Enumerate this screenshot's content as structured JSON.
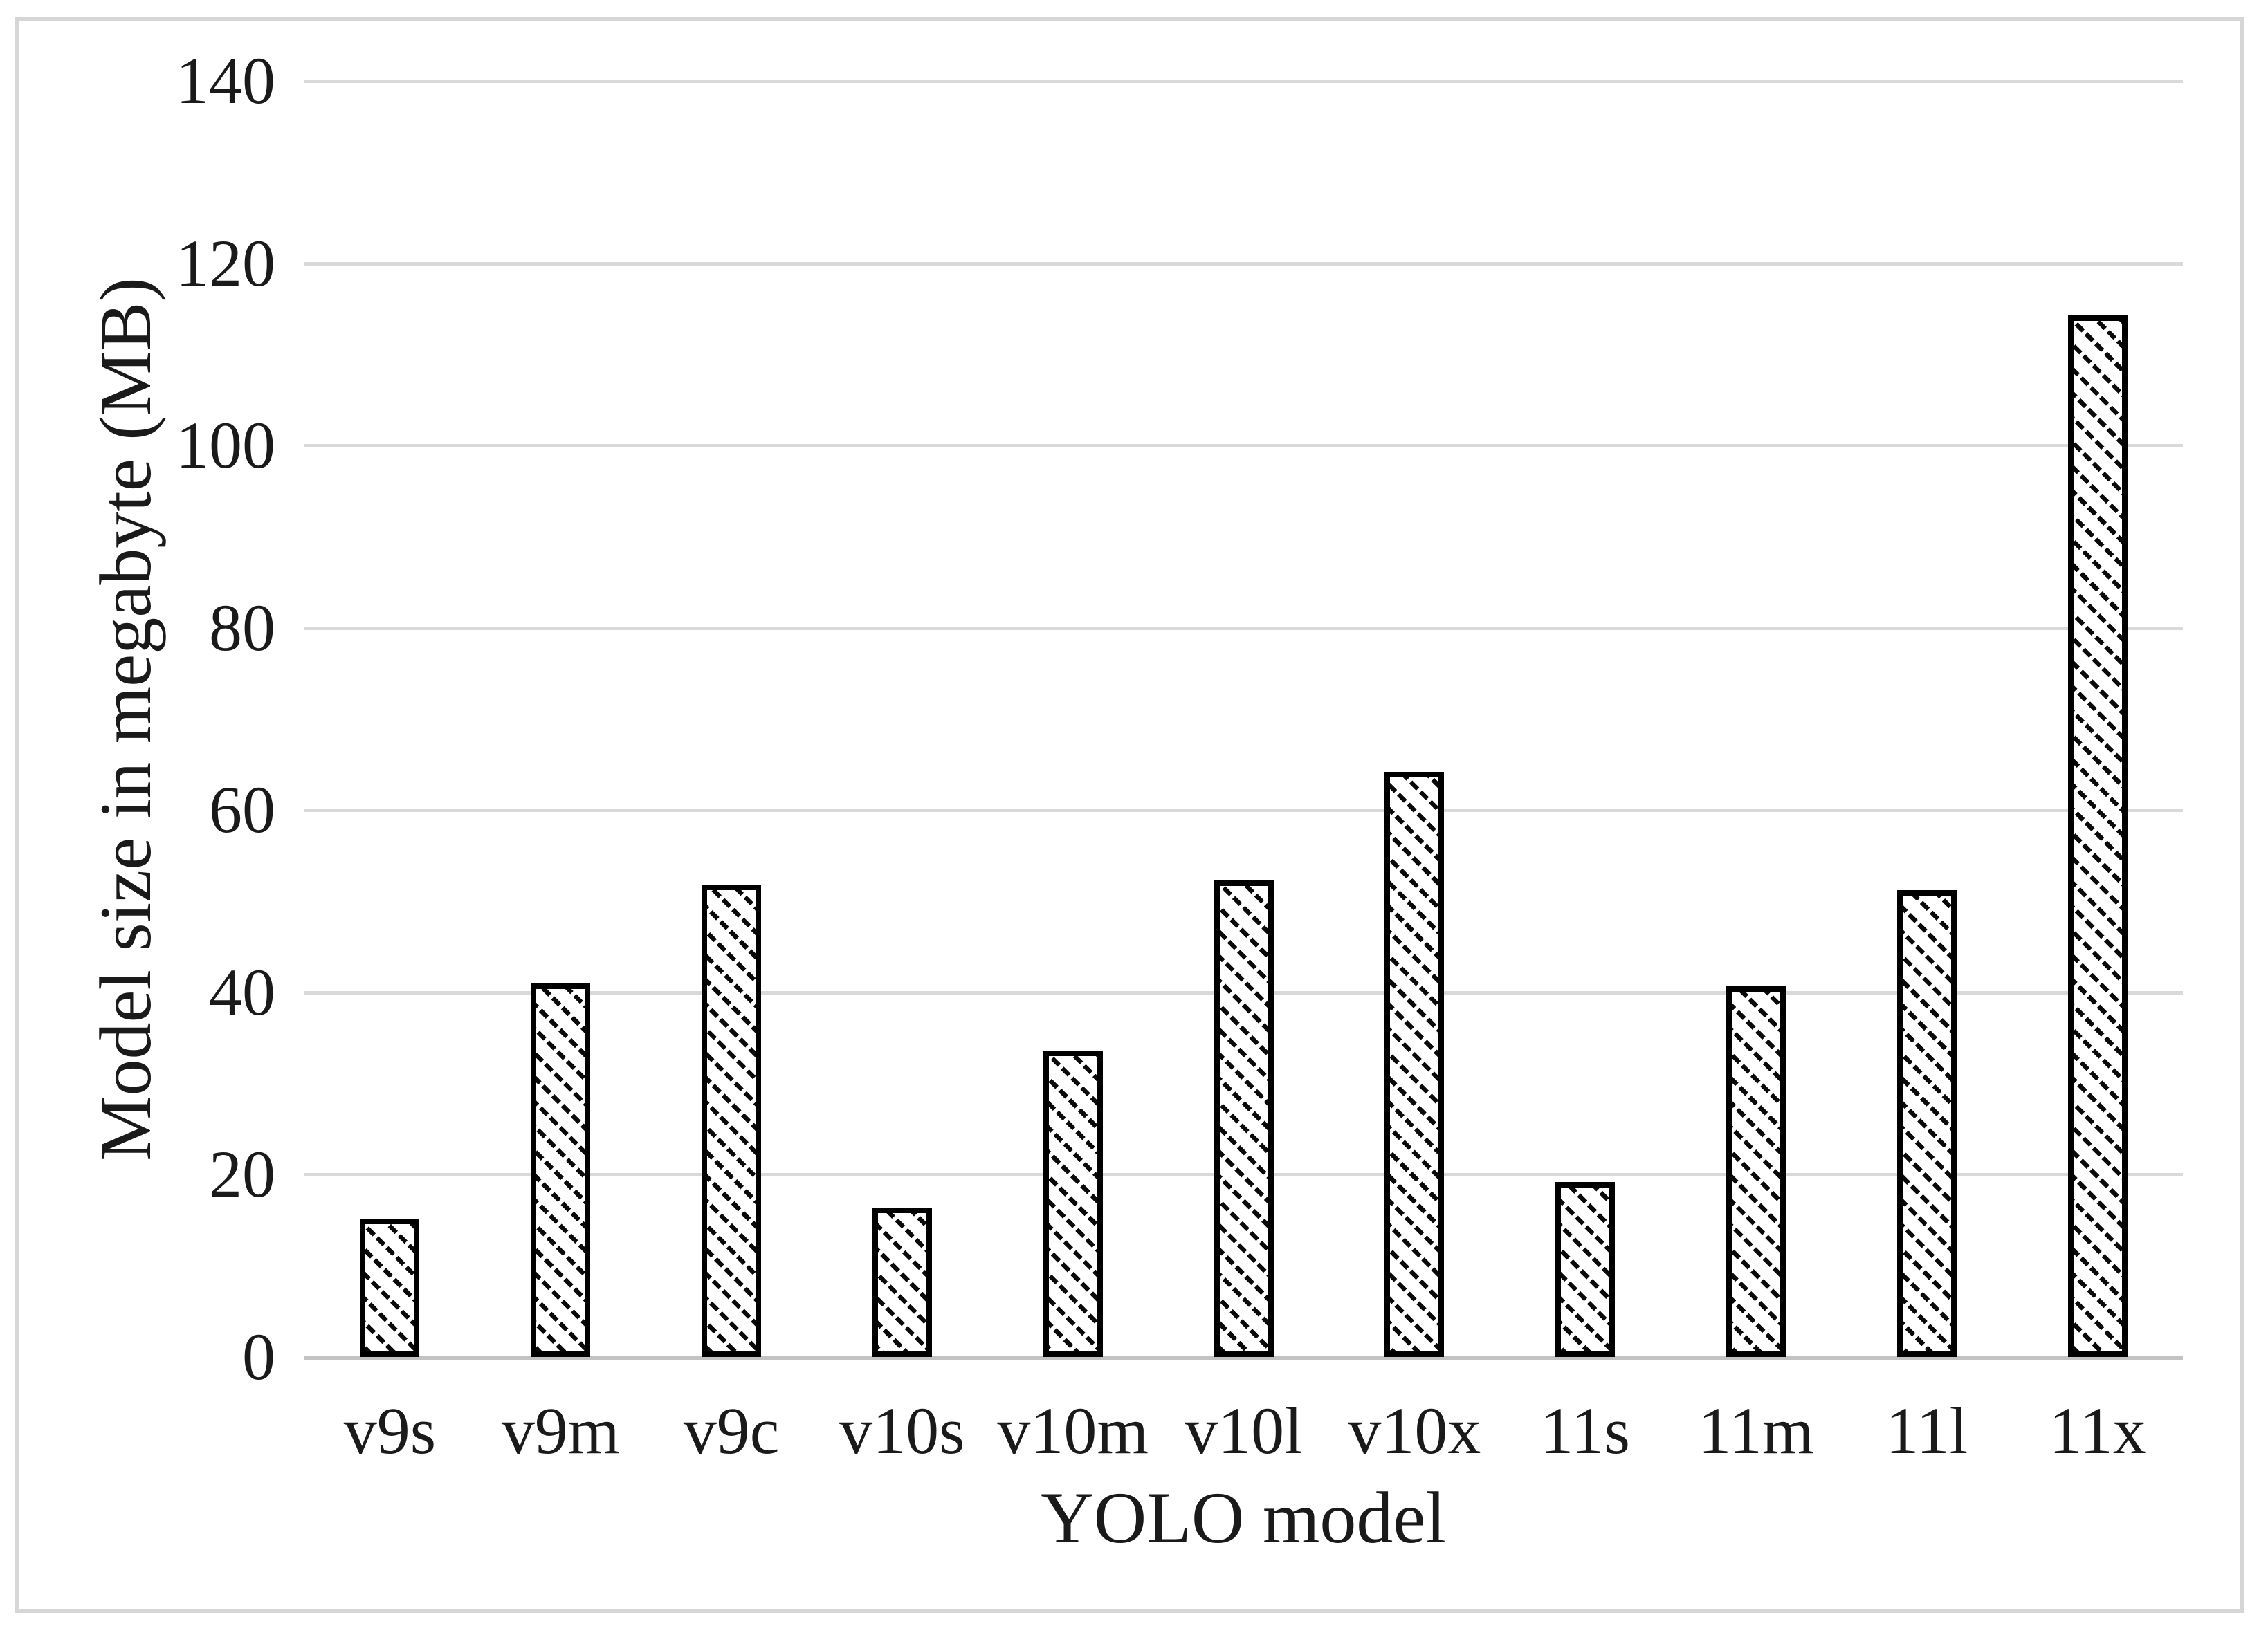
{
  "chart_data": {
    "type": "bar",
    "title": "",
    "categories": [
      "v9s",
      "v9m",
      "v9c",
      "v10s",
      "v10m",
      "v10l",
      "v10x",
      "11s",
      "11m",
      "11l",
      "11x"
    ],
    "values": [
      15.2,
      41.0,
      51.8,
      16.4,
      33.6,
      52.3,
      64.2,
      19.2,
      40.7,
      51.2,
      114.3
    ],
    "series_name": "Model size",
    "xlabel": "YOLO model",
    "ylabel": "Model size in megabyte (MB)",
    "ylim": [
      0,
      140
    ],
    "ytick_step": 20,
    "yticks": [
      140,
      120,
      100,
      80,
      60,
      40,
      20,
      0
    ],
    "grid": "horizontal",
    "legend": "none",
    "bar_style": {
      "fill": "#ffffff",
      "hatch": "diagonal-down-dotted",
      "border_color": "#000000"
    },
    "colors": {
      "gridline": "#d9d9d9",
      "axis_line": "#c3c3c3",
      "text": "#1a1a1a",
      "figure_border": "#d6d6d6",
      "background": "#ffffff"
    }
  }
}
